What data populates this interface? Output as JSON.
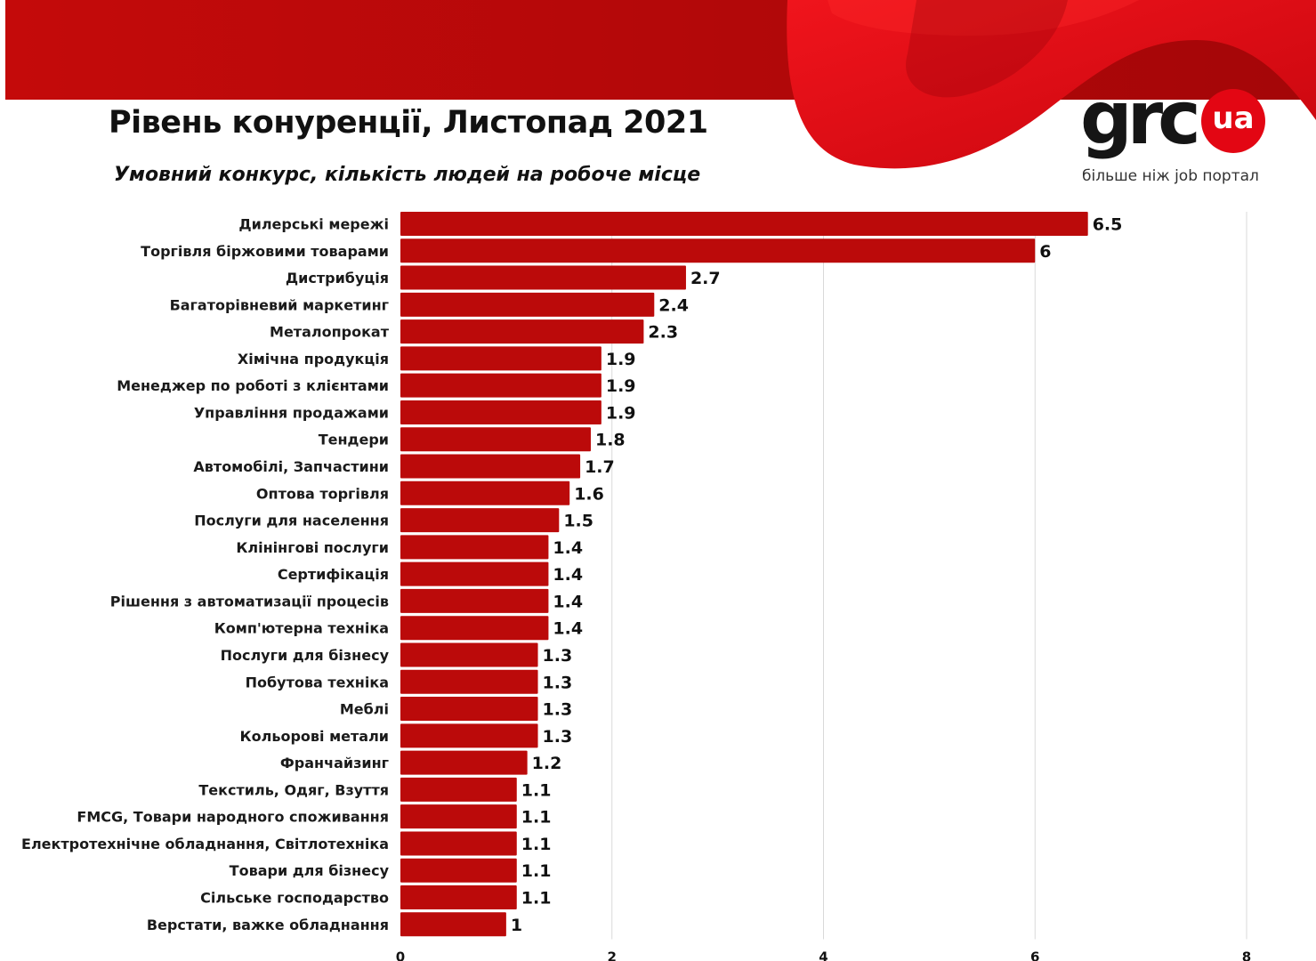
{
  "header": {
    "title": "Рівень конуренції, Листопад 2021",
    "subtitle": "Умовний конкурс, кількість людей на робоче місце"
  },
  "logo": {
    "wordmark": "grc",
    "badge": "ua",
    "tagline": "більше ніж job портал"
  },
  "colors": {
    "bar": "#bb0a0a",
    "banner_dark": "#b0080a",
    "banner_bright": "#e30613",
    "grid": "#d9d9d9"
  },
  "chart_data": {
    "type": "bar",
    "orientation": "horizontal",
    "categories": [
      "Дилерські мережі",
      "Торгівля біржовими товарами",
      "Дистрибуція",
      "Багаторівневий маркетинг",
      "Металопрокат",
      "Хімічна продукція",
      "Менеджер по роботі з клієнтами",
      "Управління продажами",
      "Тендери",
      "Автомобілі, Запчастини",
      "Оптова торгівля",
      "Послуги для населення",
      "Клінінгові послуги",
      "Сертифікація",
      "Рішення з автоматизації процесів",
      "Комп'ютерна техніка",
      "Послуги для бізнесу",
      "Побутова техніка",
      "Меблі",
      "Кольорові метали",
      "Франчайзинг",
      "Текстиль, Одяг, Взуття",
      "FMCG, Товари народного споживання",
      "Електротехнічне обладнання, Світлотехніка",
      "Товари для бізнесу",
      "Сільське господарство",
      "Верстати, важке обладнання"
    ],
    "values": [
      6.5,
      6,
      2.7,
      2.4,
      2.3,
      1.9,
      1.9,
      1.9,
      1.8,
      1.7,
      1.6,
      1.5,
      1.4,
      1.4,
      1.4,
      1.4,
      1.3,
      1.3,
      1.3,
      1.3,
      1.2,
      1.1,
      1.1,
      1.1,
      1.1,
      1.1,
      1
    ],
    "data_labels": [
      "6.5",
      "6",
      "2.7",
      "2.4",
      "2.3",
      "1.9",
      "1.9",
      "1.9",
      "1.8",
      "1.7",
      "1.6",
      "1.5",
      "1.4",
      "1.4",
      "1.4",
      "1.4",
      "1.3",
      "1.3",
      "1.3",
      "1.3",
      "1.2",
      "1.1",
      "1.1",
      "1.1",
      "1.1",
      "1.1",
      "1"
    ],
    "x_ticks": [
      0,
      2,
      4,
      6,
      8
    ],
    "xlim": [
      0,
      8
    ],
    "grid": "vertical",
    "legend": "none"
  }
}
